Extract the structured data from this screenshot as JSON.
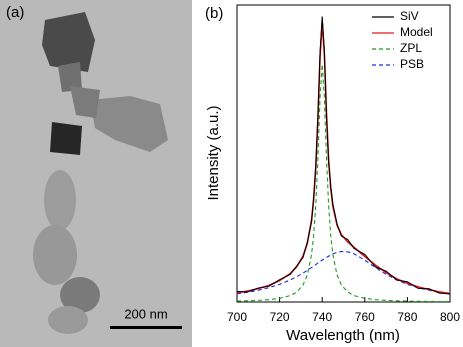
{
  "image_panel": {
    "label": "(a)",
    "scale_bar": "200 nm"
  },
  "chart_data": {
    "type": "line",
    "label": "(b)",
    "x_label": "Wavelength (nm)",
    "y_label": "Intensity (a.u.)",
    "x": [
      700,
      705,
      710,
      715,
      720,
      725,
      728,
      731,
      733,
      735,
      736,
      737,
      738,
      739,
      740,
      741,
      742,
      743,
      744,
      745,
      747,
      749,
      752,
      755,
      760,
      765,
      770,
      775,
      780,
      785,
      790,
      795,
      800
    ],
    "series": [
      {
        "name": "SiV",
        "color": "#000000",
        "style": "solid",
        "values": [
          0.035,
          0.034,
          0.047,
          0.053,
          0.075,
          0.093,
          0.121,
          0.15,
          0.201,
          0.27,
          0.352,
          0.46,
          0.628,
          0.84,
          0.96,
          0.85,
          0.63,
          0.47,
          0.39,
          0.33,
          0.262,
          0.222,
          0.21,
          0.18,
          0.16,
          0.118,
          0.104,
          0.074,
          0.068,
          0.046,
          0.045,
          0.03,
          0.027
        ]
      },
      {
        "name": "Model",
        "color": "#e8161c",
        "style": "solid",
        "values": [
          0.031,
          0.037,
          0.045,
          0.056,
          0.072,
          0.096,
          0.118,
          0.155,
          0.197,
          0.276,
          0.346,
          0.454,
          0.619,
          0.826,
          0.941,
          0.836,
          0.638,
          0.482,
          0.383,
          0.322,
          0.258,
          0.227,
          0.202,
          0.184,
          0.153,
          0.124,
          0.099,
          0.078,
          0.063,
          0.051,
          0.042,
          0.034,
          0.029
        ]
      },
      {
        "name": "ZPL",
        "color": "#1f9a1f",
        "style": "dashed",
        "values": [
          0.0031,
          0.0041,
          0.0055,
          0.0079,
          0.0123,
          0.0216,
          0.0333,
          0.0573,
          0.0905,
          0.16,
          0.225,
          0.328,
          0.488,
          0.69,
          0.8,
          0.69,
          0.488,
          0.328,
          0.225,
          0.16,
          0.0905,
          0.0573,
          0.0333,
          0.0216,
          0.0123,
          0.0079,
          0.0055,
          0.0041,
          0.0031,
          0.0025,
          0.002,
          0.0016,
          0.0014
        ]
      },
      {
        "name": "PSB",
        "color": "#1c2ee0",
        "style": "dashed",
        "values": [
          0.0276,
          0.0328,
          0.0395,
          0.0482,
          0.0594,
          0.0742,
          0.085,
          0.0974,
          0.1065,
          0.116,
          0.121,
          0.126,
          0.131,
          0.136,
          0.141,
          0.146,
          0.15,
          0.154,
          0.158,
          0.162,
          0.167,
          0.17,
          0.169,
          0.162,
          0.141,
          0.116,
          0.0931,
          0.0742,
          0.0594,
          0.0482,
          0.0395,
          0.0328,
          0.0276
        ]
      }
    ],
    "xlim": [
      700,
      800
    ],
    "xticks": [
      700,
      720,
      740,
      760,
      780,
      800
    ],
    "ylim": [
      0,
      1
    ],
    "legend": "upper right"
  }
}
